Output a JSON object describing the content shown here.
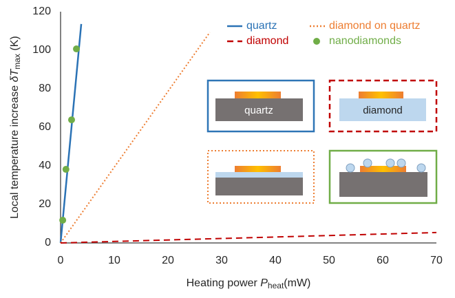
{
  "chart_data": {
    "type": "line",
    "x_label": {
      "prefix": "Heating power ",
      "symbol": "P",
      "sub": "heat",
      "suffix": "(mW)"
    },
    "y_label": {
      "prefix": "Local temperature increase ",
      "symbol": "δT",
      "sub": "max",
      "suffix": " (K)"
    },
    "xlim": [
      0,
      70
    ],
    "xticks": [
      0,
      10,
      20,
      30,
      40,
      50,
      60,
      70
    ],
    "ylim": [
      0,
      120
    ],
    "yticks": [
      0,
      20,
      40,
      60,
      80,
      100,
      120
    ],
    "grid": false,
    "series": [
      {
        "name": "quartz",
        "color": "#2a72b5",
        "style": "solid",
        "x": [
          0,
          3.85
        ],
        "values": [
          0,
          113.6
        ]
      },
      {
        "name": "diamond on quartz",
        "color": "#ed7d31",
        "style": "dotted",
        "x": [
          0,
          27.8
        ],
        "values": [
          0,
          109.3
        ]
      },
      {
        "name": "diamond",
        "color": "#c00000",
        "style": "dashed",
        "x": [
          0,
          70
        ],
        "values": [
          0,
          5.4
        ]
      },
      {
        "name": "nanodiamonds",
        "color": "#70ad47",
        "style": "markers",
        "x": [
          0.4,
          1.0,
          2.05,
          2.95
        ],
        "values": [
          11.8,
          38.2,
          63.9,
          100.7
        ]
      }
    ],
    "insets": [
      "quartz",
      "diamond"
    ]
  }
}
